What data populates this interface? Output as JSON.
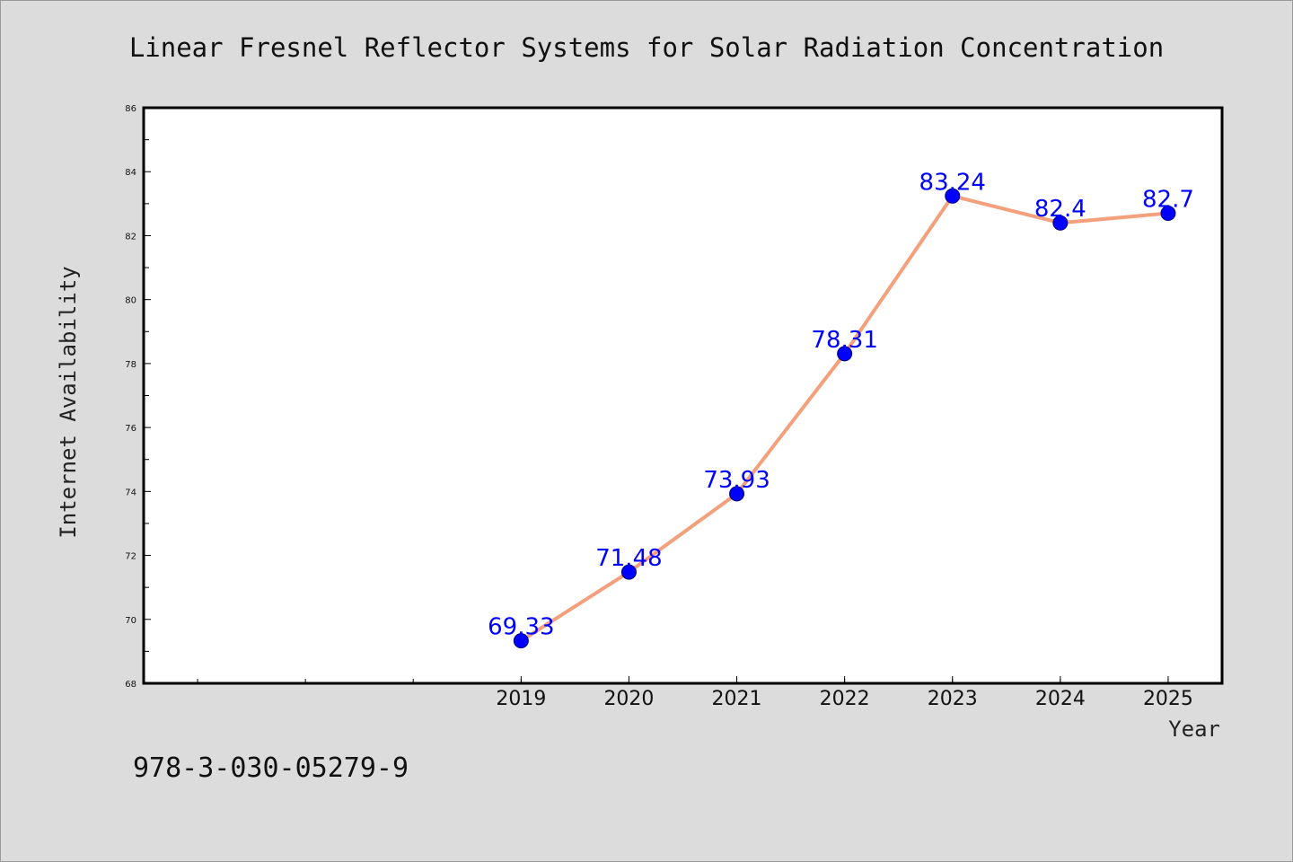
{
  "chart_data": {
    "type": "line",
    "title": "Linear Fresnel Reflector Systems for Solar Radiation Concentration",
    "xlabel": "Year",
    "ylabel": "Internet Availability",
    "x": [
      2019,
      2020,
      2021,
      2022,
      2023,
      2024,
      2025
    ],
    "x_tick_labels": [
      "2019",
      "2020",
      "2021",
      "2022",
      "2023",
      "2024",
      "2025"
    ],
    "series": [
      {
        "values": [
          69.33,
          71.48,
          73.93,
          78.31,
          83.24,
          82.4,
          82.7
        ],
        "data_labels": [
          "69.33",
          "71.48",
          "73.93",
          "78.31",
          "83.24",
          "82.4",
          "82.7"
        ]
      }
    ],
    "xlim": [
      2015.5,
      2025.5
    ],
    "ylim": [
      68,
      86
    ],
    "y_ticks": [
      68,
      70,
      72,
      74,
      76,
      78,
      80,
      82,
      84,
      86
    ],
    "grid": false,
    "colors": {
      "line": "#f4a07c",
      "marker": "#0000ff",
      "label": "#0000ff",
      "background": "#dcdcdc",
      "plot_background": "#ffffff"
    }
  },
  "footer": {
    "code": "978-3-030-05279-9"
  }
}
